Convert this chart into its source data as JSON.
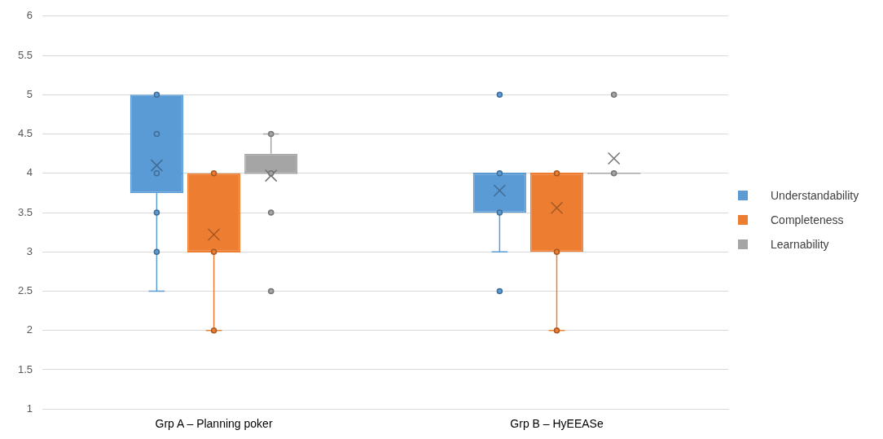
{
  "chart_data": {
    "type": "box",
    "categories": [
      "Grp A – Planning poker",
      "Grp B – HyEEASe"
    ],
    "series": [
      {
        "name": "Understandability",
        "color": "#5b9bd5",
        "boxes": [
          {
            "low": 2.5,
            "q1": 3.75,
            "median": 4,
            "q3": 5,
            "high": 5,
            "mean": 4.1,
            "outliers": [
              3,
              3.5,
              4,
              4.5,
              5
            ]
          },
          {
            "low": 3,
            "q1": 3.5,
            "median": 4,
            "q3": 4,
            "high": 4,
            "mean": 3.78,
            "outliers": [
              5,
              4,
              3.5,
              2.5
            ]
          }
        ]
      },
      {
        "name": "Completeness",
        "color": "#ed7d31",
        "boxes": [
          {
            "low": 2,
            "q1": 3,
            "median": 3,
            "q3": 4,
            "high": 4,
            "mean": 3.22,
            "outliers": [
              4,
              3,
              2
            ]
          },
          {
            "low": 2,
            "q1": 3,
            "median": 4,
            "q3": 4,
            "high": 4,
            "mean": 3.56,
            "outliers": [
              4,
              3,
              2
            ]
          }
        ]
      },
      {
        "name": "Learnability",
        "color": "#a5a5a5",
        "boxes": [
          {
            "low": 4,
            "q1": 4,
            "median": 4,
            "q3": 4.25,
            "high": 4.5,
            "mean": 3.97,
            "outliers": [
              4.5,
              4,
              3.5,
              2.5
            ]
          },
          {
            "low": 4,
            "q1": 4,
            "median": 4,
            "q3": 4,
            "high": 4,
            "mean": 4.19,
            "outliers": [
              5,
              4
            ]
          }
        ]
      }
    ],
    "ylim": [
      1,
      6
    ],
    "yticks": [
      1,
      1.5,
      2,
      2.5,
      3,
      3.5,
      4,
      4.5,
      5,
      5.5,
      6
    ],
    "grid": "y",
    "legend": "right",
    "marker": "circle"
  }
}
